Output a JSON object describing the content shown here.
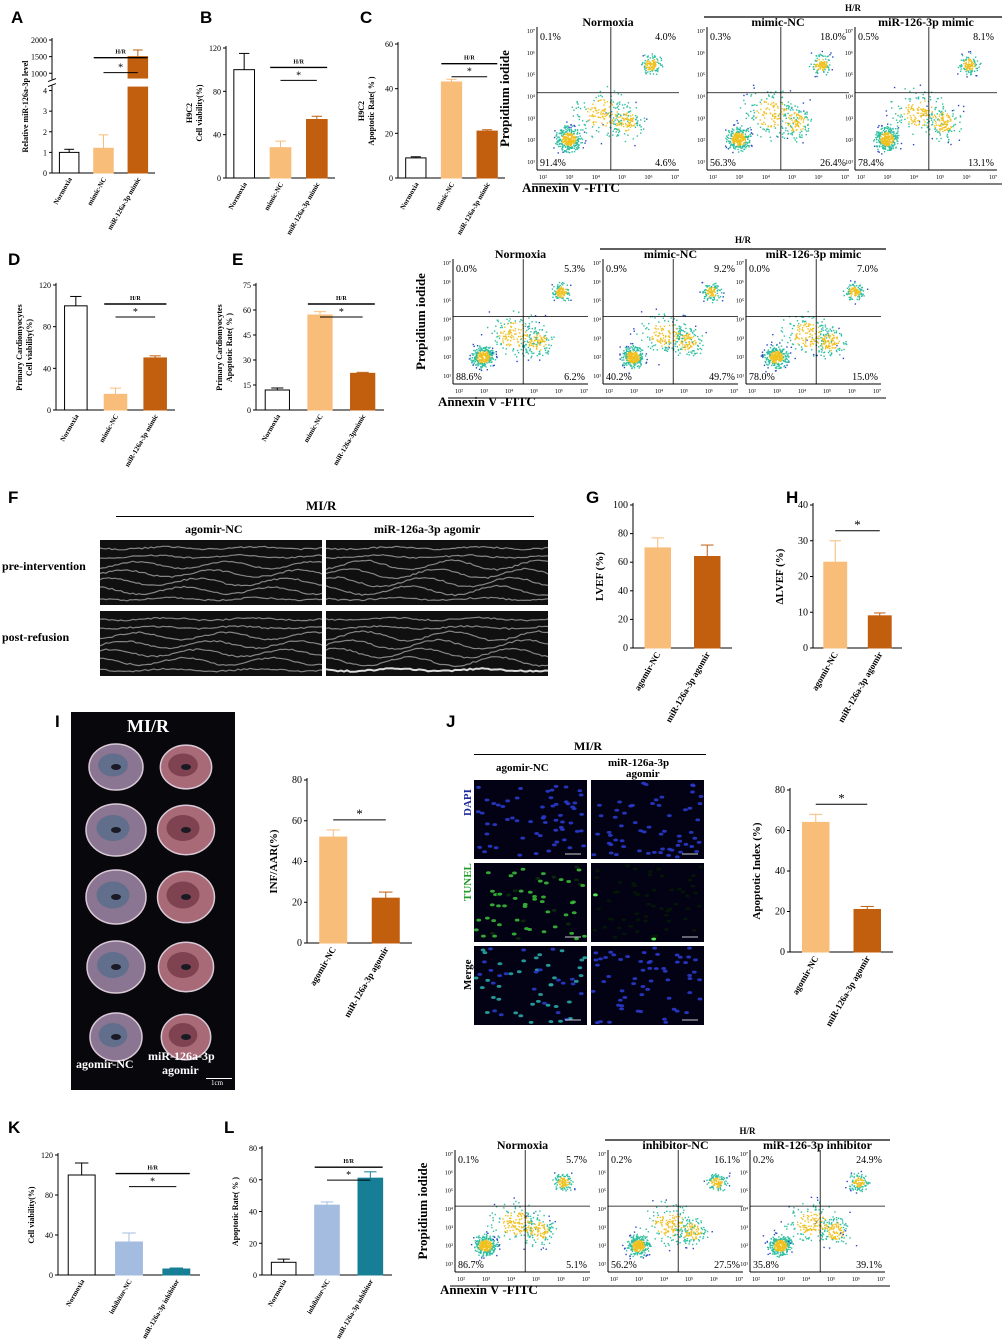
{
  "panel_letters": [
    "A",
    "B",
    "C",
    "D",
    "E",
    "F",
    "G",
    "H",
    "I",
    "J",
    "K",
    "L"
  ],
  "colors": {
    "white_bar": "#ffffff",
    "light_orange": "#f9bd7a",
    "dark_orange": "#c15f0f",
    "light_blue": "#a4bce0",
    "teal": "#177f95",
    "axis": "#000000",
    "dapi": "#1b2a9e",
    "tunel": "#239b2a"
  },
  "labels": {
    "hr": "H/R",
    "star": "*",
    "mir": "MI/R",
    "annexin": "Annexin V -FITC",
    "pi": "Propidium iodide",
    "normoxia": "Normoxia",
    "mimic_nc": "mimic-NC",
    "mir126_mimic": "miR-126-3p mimic",
    "inhibitor_nc": "inhibitor-NC",
    "mir126_inhibitor": "miR-126-3p inhibitor",
    "agomir_nc": "agomir-NC",
    "mir126a_agomir": "miR-126a-3p agomir",
    "mir126a_agomir_l1": "miR-126a-3p",
    "mir126a_agomir_l2": "agomir",
    "pre_intervention": "pre-intervention",
    "post_refusion": "post-refusion",
    "scale": "1cm",
    "dapi": "DAPI",
    "tunel": "TUNEL",
    "merge": "Merge"
  },
  "chart_data": [
    {
      "id": "A",
      "type": "bar",
      "categories": [
        "Normoxia",
        "mimic-NC",
        "miR-126a-3p mimic"
      ],
      "values": [
        1.0,
        1.2,
        1500
      ],
      "errors": [
        0.15,
        0.65,
        200
      ],
      "ylabel": "Relative miR-126a-3p level",
      "yticks_lower": [
        "0",
        "1",
        "2",
        "3",
        "4"
      ],
      "yticks_upper": [
        "1000",
        "1500",
        "2000"
      ],
      "broken_axis": true,
      "hr": "H/R",
      "sig": "*"
    },
    {
      "id": "B",
      "type": "bar",
      "categories": [
        "Normoxia",
        "mimic-NC",
        "miR-126a-3p mimic"
      ],
      "values": [
        100,
        28,
        54
      ],
      "errors": [
        15,
        6,
        3
      ],
      "ylabel_lines": [
        "H9C2",
        "Cell viability(%)"
      ],
      "ylim": [
        0,
        120
      ],
      "yticks": [
        "0",
        "40",
        "80",
        "120"
      ],
      "hr": "H/R",
      "sig": "*"
    },
    {
      "id": "C",
      "type": "bar",
      "categories": [
        "Normoxia",
        "mimic-NC",
        "miR-126a-3p mimic"
      ],
      "values": [
        9,
        43,
        21
      ],
      "errors": [
        0.5,
        1.2,
        0.6
      ],
      "ylabel_lines": [
        "H9C2",
        "Apoptotic Rate( % )"
      ],
      "ylim": [
        0,
        60
      ],
      "yticks": [
        "0",
        "20",
        "40",
        "60"
      ],
      "hr": "H/R",
      "sig": "*"
    },
    {
      "id": "D",
      "type": "bar",
      "categories": [
        "Normoxia",
        "mimic-NC",
        "miR-126a-3p mimic"
      ],
      "values": [
        100,
        15,
        50
      ],
      "errors": [
        9,
        6,
        2
      ],
      "ylabel_lines": [
        "Primary Cardiomyocytes",
        "Cell viability(%)"
      ],
      "ylim": [
        0,
        120
      ],
      "yticks": [
        "0",
        "40",
        "80",
        "120"
      ],
      "hr": "H/R",
      "sig": "*"
    },
    {
      "id": "E",
      "type": "bar",
      "categories": [
        "Normoxia",
        "mimic-NC",
        "miR-126a-3pmimic"
      ],
      "values": [
        12,
        57,
        22
      ],
      "errors": [
        1.2,
        2,
        0.6
      ],
      "ylabel_lines": [
        "Primary Cardiomyocytes",
        "Apoptotic Rate( % )"
      ],
      "ylim": [
        0,
        75
      ],
      "yticks": [
        "0",
        "15",
        "30",
        "45",
        "60",
        "75"
      ],
      "hr": "H/R",
      "sig": "*"
    },
    {
      "id": "G",
      "type": "bar",
      "categories": [
        "agomir-NC",
        "miR-126a-3p agomir"
      ],
      "values": [
        70,
        64
      ],
      "errors": [
        7,
        8
      ],
      "ylabel": "LVEF (%)",
      "ylim": [
        0,
        100
      ],
      "yticks": [
        "0",
        "20",
        "40",
        "60",
        "80",
        "100"
      ]
    },
    {
      "id": "H",
      "type": "bar",
      "categories": [
        "agomir-NC",
        "miR-126a-3p agomir"
      ],
      "values": [
        24,
        9
      ],
      "errors": [
        6,
        0.8
      ],
      "ylabel": "ΔLVEF (%)",
      "ylim": [
        0,
        40
      ],
      "yticks": [
        "0",
        "10",
        "20",
        "30",
        "40"
      ],
      "sig": "*"
    },
    {
      "id": "I",
      "type": "bar",
      "categories": [
        "agomir-NC",
        "miR-126a-3p agomir"
      ],
      "values": [
        52,
        22
      ],
      "errors": [
        3.5,
        3
      ],
      "ylabel": "INF/AAR(%)",
      "ylim": [
        0,
        80
      ],
      "yticks": [
        "0",
        "20",
        "40",
        "60",
        "80"
      ],
      "sig": "*"
    },
    {
      "id": "J",
      "type": "bar",
      "categories": [
        "agomir-NC",
        "miR-126a-3p agomir"
      ],
      "values": [
        64,
        21
      ],
      "errors": [
        4,
        1.5
      ],
      "ylabel": "Apoptotic Index (%)",
      "ylim": [
        0,
        80
      ],
      "yticks": [
        "0",
        "20",
        "40",
        "60",
        "80"
      ],
      "sig": "*"
    },
    {
      "id": "K",
      "type": "bar",
      "categories": [
        "Normoxia",
        "inhibitor-NC",
        "miR-126a-3p inhibitor"
      ],
      "values": [
        100,
        33,
        6
      ],
      "errors": [
        12,
        9,
        1
      ],
      "ylabel": "Cell viability(%)",
      "ylim": [
        0,
        120
      ],
      "yticks": [
        "0",
        "40",
        "80",
        "120"
      ],
      "hr": "H/R",
      "sig": "*"
    },
    {
      "id": "L",
      "type": "bar",
      "categories": [
        "Normoxia",
        "inhibitor-NC",
        "miR-126a-3p inhibitor"
      ],
      "values": [
        8,
        44,
        61
      ],
      "errors": [
        2,
        2,
        4
      ],
      "ylabel": "Apoptotic Rate( % )",
      "ylim": [
        0,
        80
      ],
      "yticks": [
        "0",
        "20",
        "40",
        "60",
        "80"
      ],
      "hr": "H/R",
      "sig": "*"
    }
  ],
  "flow": [
    {
      "id": "C",
      "panels": [
        {
          "title": "Normoxia",
          "q": [
            "0.1%",
            "4.0%",
            "91.4%",
            "4.6%"
          ]
        },
        {
          "title": "mimic-NC",
          "q": [
            "0.3%",
            "18.0%",
            "56.3%",
            "26.4%"
          ]
        },
        {
          "title": "miR-126-3p mimic",
          "q": [
            "0.5%",
            "8.1%",
            "78.4%",
            "13.1%"
          ]
        }
      ]
    },
    {
      "id": "E",
      "panels": [
        {
          "title": "Normoxia",
          "q": [
            "0.0%",
            "5.3%",
            "88.6%",
            "6.2%"
          ]
        },
        {
          "title": "mimic-NC",
          "q": [
            "0.9%",
            "9.2%",
            "40.2%",
            "49.7%"
          ]
        },
        {
          "title": "miR-126-3p mimic",
          "q": [
            "0.0%",
            "7.0%",
            "78.0%",
            "15.0%"
          ]
        }
      ]
    },
    {
      "id": "L",
      "panels": [
        {
          "title": "Normoxia",
          "q": [
            "0.1%",
            "5.7%",
            "86.7%",
            "5.1%"
          ]
        },
        {
          "title": "inhibitor-NC",
          "q": [
            "0.2%",
            "16.1%",
            "56.2%",
            "27.5%"
          ]
        },
        {
          "title": "miR-126-3p inhibitor",
          "q": [
            "0.2%",
            "24.9%",
            "35.8%",
            "39.1%"
          ]
        }
      ]
    }
  ],
  "flow_ticks": [
    "10²",
    "10³",
    "10⁴",
    "10⁵",
    "10⁶",
    "10⁷"
  ],
  "flow_ticks_y": [
    "10¹",
    "10²",
    "10³",
    "10⁴",
    "10⁵",
    "10⁶",
    "10⁷"
  ]
}
